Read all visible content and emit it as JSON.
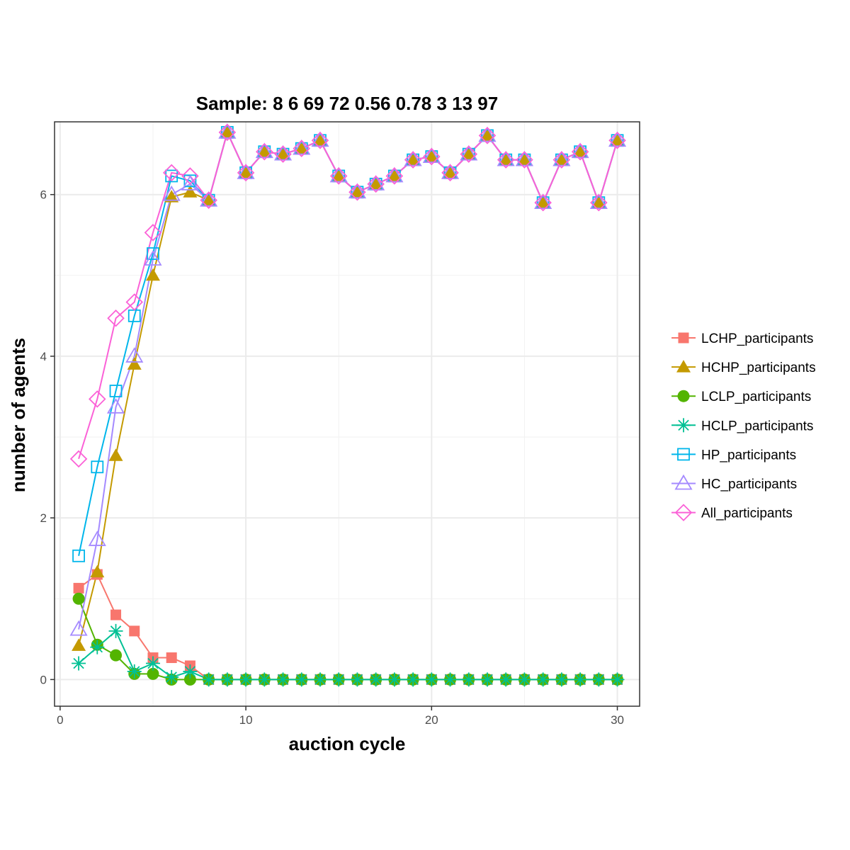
{
  "chart_data": {
    "type": "line",
    "title": "Sample: 8 6 69 72 0.56 0.78 3 13 97",
    "xlabel": "auction cycle",
    "ylabel": "number of agents",
    "xlim": [
      -0.3,
      31.2
    ],
    "ylim": [
      -0.33,
      6.9
    ],
    "x_ticks": [
      0,
      10,
      20,
      30
    ],
    "y_ticks": [
      0,
      2,
      4,
      6
    ],
    "grid": true,
    "legend_position": "right",
    "x": [
      1,
      2,
      3,
      4,
      5,
      6,
      7,
      8,
      9,
      10,
      11,
      12,
      13,
      14,
      15,
      16,
      17,
      18,
      19,
      20,
      21,
      22,
      23,
      24,
      25,
      26,
      27,
      28,
      29,
      30
    ],
    "series": [
      {
        "name": "LCHP_participants",
        "color": "#F8766D",
        "marker": "filled-square",
        "values": [
          1.13,
          1.3,
          0.8,
          0.6,
          0.27,
          0.27,
          0.17,
          0,
          0,
          0,
          0,
          0,
          0,
          0,
          0,
          0,
          0,
          0,
          0,
          0,
          0,
          0,
          0,
          0,
          0,
          0,
          0,
          0,
          0,
          0
        ]
      },
      {
        "name": "HCHP_participants",
        "color": "#C49A00",
        "marker": "filled-triangle",
        "values": [
          0.42,
          1.33,
          2.77,
          3.9,
          5.0,
          5.97,
          6.03,
          5.93,
          6.77,
          6.27,
          6.53,
          6.5,
          6.57,
          6.67,
          6.23,
          6.03,
          6.13,
          6.23,
          6.43,
          6.47,
          6.27,
          6.5,
          6.73,
          6.43,
          6.43,
          5.9,
          6.43,
          6.53,
          5.9,
          6.67
        ]
      },
      {
        "name": "LCLP_participants",
        "color": "#53B400",
        "marker": "filled-circle",
        "values": [
          1.0,
          0.43,
          0.3,
          0.07,
          0.07,
          0.0,
          0.0,
          0,
          0,
          0,
          0,
          0,
          0,
          0,
          0,
          0,
          0,
          0,
          0,
          0,
          0,
          0,
          0,
          0,
          0,
          0,
          0,
          0,
          0,
          0
        ]
      },
      {
        "name": "HCLP_participants",
        "color": "#00C094",
        "marker": "asterisk",
        "values": [
          0.2,
          0.4,
          0.6,
          0.1,
          0.2,
          0.03,
          0.1,
          0,
          0,
          0,
          0,
          0,
          0,
          0,
          0,
          0,
          0,
          0,
          0,
          0,
          0,
          0,
          0,
          0,
          0,
          0,
          0,
          0,
          0,
          0
        ]
      },
      {
        "name": "HP_participants",
        "color": "#00B6EB",
        "marker": "open-square",
        "values": [
          1.53,
          2.63,
          3.57,
          4.5,
          5.27,
          6.23,
          6.17,
          5.93,
          6.77,
          6.27,
          6.53,
          6.5,
          6.57,
          6.67,
          6.23,
          6.03,
          6.13,
          6.23,
          6.43,
          6.47,
          6.27,
          6.5,
          6.73,
          6.43,
          6.43,
          5.9,
          6.43,
          6.53,
          5.9,
          6.67
        ]
      },
      {
        "name": "HC_participants",
        "color": "#A58AFF",
        "marker": "open-triangle",
        "values": [
          0.62,
          1.73,
          3.37,
          4.0,
          5.2,
          6.0,
          6.13,
          5.93,
          6.77,
          6.27,
          6.53,
          6.5,
          6.57,
          6.67,
          6.23,
          6.03,
          6.13,
          6.23,
          6.43,
          6.47,
          6.27,
          6.5,
          6.73,
          6.43,
          6.43,
          5.9,
          6.43,
          6.53,
          5.9,
          6.67
        ]
      },
      {
        "name": "All_participants",
        "color": "#FB61D7",
        "marker": "open-diamond",
        "values": [
          2.73,
          3.47,
          4.47,
          4.67,
          5.53,
          6.27,
          6.23,
          5.93,
          6.77,
          6.27,
          6.53,
          6.5,
          6.57,
          6.67,
          6.23,
          6.03,
          6.13,
          6.23,
          6.43,
          6.47,
          6.27,
          6.5,
          6.73,
          6.43,
          6.43,
          5.9,
          6.43,
          6.53,
          5.9,
          6.67
        ]
      }
    ]
  }
}
